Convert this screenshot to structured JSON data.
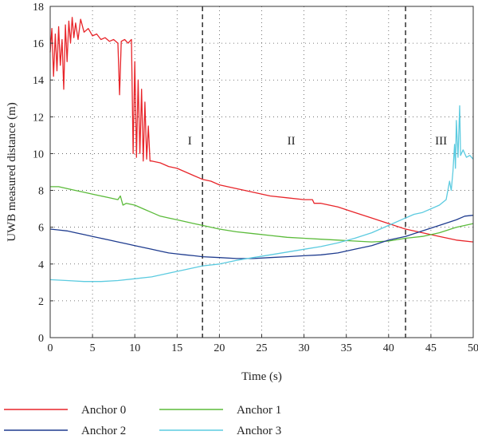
{
  "chart_data": {
    "type": "line",
    "title": "",
    "xlabel": "Time (s)",
    "ylabel": "UWB measured distance (m)",
    "xlim": [
      0,
      50
    ],
    "ylim": [
      0,
      18
    ],
    "xticks": [
      0,
      5,
      10,
      15,
      20,
      25,
      30,
      35,
      40,
      45,
      50
    ],
    "yticks": [
      0,
      2,
      4,
      6,
      8,
      10,
      12,
      14,
      16,
      18
    ],
    "grid": "dotted",
    "legend_position": "bottom, outside plot",
    "vertical_lines": [
      {
        "x": 18,
        "style": "dashed"
      },
      {
        "x": 42,
        "style": "dashed"
      }
    ],
    "region_labels": [
      {
        "text": "I",
        "x": 16.5,
        "y": 10.5
      },
      {
        "text": "II",
        "x": 28.5,
        "y": 10.5
      },
      {
        "text": "III",
        "x": 46.2,
        "y": 10.5
      }
    ],
    "series": [
      {
        "name": "Anchor 0",
        "color": "#e8252a",
        "points": [
          [
            0,
            15.5
          ],
          [
            0.2,
            16.8
          ],
          [
            0.4,
            14.2
          ],
          [
            0.6,
            16.5
          ],
          [
            0.8,
            14.5
          ],
          [
            1.0,
            16.9
          ],
          [
            1.2,
            14.8
          ],
          [
            1.4,
            16.2
          ],
          [
            1.6,
            13.5
          ],
          [
            1.8,
            17.0
          ],
          [
            2.0,
            15.0
          ],
          [
            2.2,
            17.2
          ],
          [
            2.4,
            16.0
          ],
          [
            2.6,
            17.4
          ],
          [
            2.8,
            16.3
          ],
          [
            3.0,
            17.1
          ],
          [
            3.3,
            16.2
          ],
          [
            3.6,
            17.3
          ],
          [
            4.0,
            16.6
          ],
          [
            4.5,
            16.8
          ],
          [
            5.0,
            16.4
          ],
          [
            5.5,
            16.5
          ],
          [
            6.0,
            16.2
          ],
          [
            6.5,
            16.3
          ],
          [
            7.0,
            16.1
          ],
          [
            7.5,
            16.2
          ],
          [
            8.0,
            16.0
          ],
          [
            8.2,
            13.2
          ],
          [
            8.4,
            16.1
          ],
          [
            8.8,
            16.2
          ],
          [
            9.2,
            16.0
          ],
          [
            9.6,
            16.2
          ],
          [
            9.8,
            10.0
          ],
          [
            10.0,
            15.0
          ],
          [
            10.2,
            9.8
          ],
          [
            10.4,
            14.0
          ],
          [
            10.6,
            10.0
          ],
          [
            10.8,
            13.5
          ],
          [
            11.0,
            9.6
          ],
          [
            11.2,
            12.8
          ],
          [
            11.4,
            9.7
          ],
          [
            11.6,
            11.5
          ],
          [
            11.8,
            9.6
          ],
          [
            12,
            9.6
          ],
          [
            13,
            9.5
          ],
          [
            14,
            9.3
          ],
          [
            15,
            9.2
          ],
          [
            16,
            9.0
          ],
          [
            17,
            8.8
          ],
          [
            18,
            8.6
          ],
          [
            19,
            8.5
          ],
          [
            20,
            8.3
          ],
          [
            22,
            8.1
          ],
          [
            24,
            7.9
          ],
          [
            26,
            7.7
          ],
          [
            28,
            7.6
          ],
          [
            30,
            7.5
          ],
          [
            31,
            7.5
          ],
          [
            31.2,
            7.3
          ],
          [
            32,
            7.3
          ],
          [
            34,
            7.1
          ],
          [
            36,
            6.8
          ],
          [
            38,
            6.5
          ],
          [
            40,
            6.2
          ],
          [
            42,
            5.9
          ],
          [
            44,
            5.7
          ],
          [
            46,
            5.5
          ],
          [
            48,
            5.3
          ],
          [
            50,
            5.2
          ]
        ]
      },
      {
        "name": "Anchor 1",
        "color": "#5bbb3a",
        "points": [
          [
            0,
            8.2
          ],
          [
            1,
            8.2
          ],
          [
            2,
            8.1
          ],
          [
            3,
            8.0
          ],
          [
            4,
            7.9
          ],
          [
            5,
            7.8
          ],
          [
            6,
            7.7
          ],
          [
            7,
            7.6
          ],
          [
            8,
            7.5
          ],
          [
            8.3,
            7.7
          ],
          [
            8.6,
            7.2
          ],
          [
            9,
            7.3
          ],
          [
            10,
            7.2
          ],
          [
            11,
            7.0
          ],
          [
            12,
            6.8
          ],
          [
            13,
            6.6
          ],
          [
            14,
            6.5
          ],
          [
            15,
            6.4
          ],
          [
            16,
            6.3
          ],
          [
            17,
            6.2
          ],
          [
            18,
            6.1
          ],
          [
            20,
            5.9
          ],
          [
            22,
            5.75
          ],
          [
            24,
            5.65
          ],
          [
            26,
            5.55
          ],
          [
            28,
            5.45
          ],
          [
            30,
            5.4
          ],
          [
            32,
            5.35
          ],
          [
            34,
            5.3
          ],
          [
            36,
            5.25
          ],
          [
            38,
            5.2
          ],
          [
            40,
            5.25
          ],
          [
            42,
            5.4
          ],
          [
            44,
            5.5
          ],
          [
            46,
            5.7
          ],
          [
            48,
            6.0
          ],
          [
            50,
            6.2
          ]
        ]
      },
      {
        "name": "Anchor 2",
        "color": "#1f3c8f",
        "points": [
          [
            0,
            5.9
          ],
          [
            1,
            5.85
          ],
          [
            2,
            5.8
          ],
          [
            3,
            5.7
          ],
          [
            4,
            5.6
          ],
          [
            5,
            5.5
          ],
          [
            6,
            5.4
          ],
          [
            7,
            5.3
          ],
          [
            8,
            5.2
          ],
          [
            9,
            5.1
          ],
          [
            10,
            5.0
          ],
          [
            11,
            4.9
          ],
          [
            12,
            4.8
          ],
          [
            13,
            4.7
          ],
          [
            14,
            4.6
          ],
          [
            15,
            4.55
          ],
          [
            16,
            4.5
          ],
          [
            17,
            4.45
          ],
          [
            18,
            4.4
          ],
          [
            20,
            4.35
          ],
          [
            22,
            4.3
          ],
          [
            24,
            4.3
          ],
          [
            26,
            4.35
          ],
          [
            28,
            4.4
          ],
          [
            30,
            4.45
          ],
          [
            32,
            4.5
          ],
          [
            34,
            4.6
          ],
          [
            36,
            4.8
          ],
          [
            38,
            5.0
          ],
          [
            40,
            5.3
          ],
          [
            42,
            5.5
          ],
          [
            44,
            5.8
          ],
          [
            46,
            6.1
          ],
          [
            48,
            6.4
          ],
          [
            49,
            6.6
          ],
          [
            50,
            6.65
          ]
        ]
      },
      {
        "name": "Anchor 3",
        "color": "#5ccbe0",
        "points": [
          [
            0,
            3.15
          ],
          [
            2,
            3.1
          ],
          [
            4,
            3.05
          ],
          [
            6,
            3.05
          ],
          [
            8,
            3.1
          ],
          [
            10,
            3.2
          ],
          [
            12,
            3.3
          ],
          [
            14,
            3.5
          ],
          [
            16,
            3.7
          ],
          [
            18,
            3.9
          ],
          [
            20,
            4.0
          ],
          [
            22,
            4.2
          ],
          [
            24,
            4.35
          ],
          [
            26,
            4.5
          ],
          [
            28,
            4.65
          ],
          [
            30,
            4.8
          ],
          [
            32,
            4.95
          ],
          [
            34,
            5.15
          ],
          [
            36,
            5.4
          ],
          [
            38,
            5.7
          ],
          [
            40,
            6.1
          ],
          [
            42,
            6.5
          ],
          [
            43,
            6.7
          ],
          [
            44,
            6.8
          ],
          [
            45,
            7.0
          ],
          [
            46,
            7.2
          ],
          [
            46.8,
            7.5
          ],
          [
            47.2,
            8.5
          ],
          [
            47.4,
            8.0
          ],
          [
            47.6,
            9.0
          ],
          [
            47.8,
            10.5
          ],
          [
            47.9,
            9.2
          ],
          [
            48.0,
            11.8
          ],
          [
            48.2,
            9.8
          ],
          [
            48.4,
            12.6
          ],
          [
            48.5,
            9.9
          ],
          [
            48.8,
            10.2
          ],
          [
            49.2,
            9.8
          ],
          [
            49.6,
            9.9
          ],
          [
            50,
            9.7
          ]
        ]
      }
    ]
  }
}
